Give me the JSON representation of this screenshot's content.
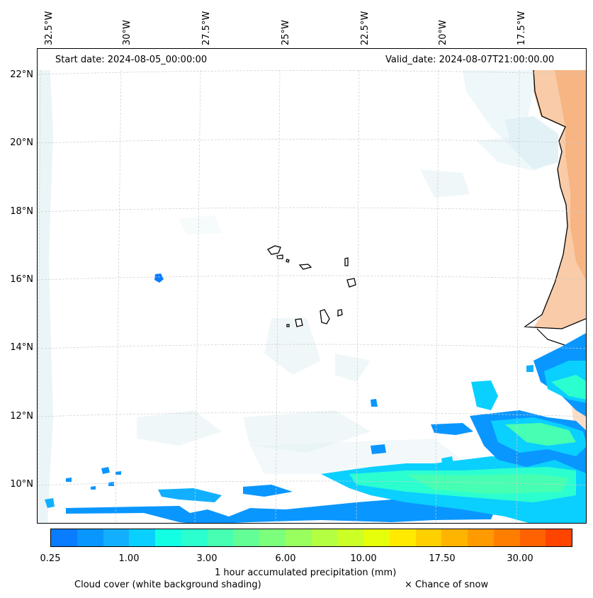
{
  "header": {
    "start_date": "Start date: 2024-08-05_00:00:00",
    "valid_date": "Valid_date: 2024-08-07T21:00:00.00"
  },
  "lon_labels": [
    "32.5°W",
    "30°W",
    "27.5°W",
    "25°W",
    "22.5°W",
    "20°W",
    "17.5°W"
  ],
  "lat_labels": [
    "22°N",
    "20°N",
    "18°N",
    "16°N",
    "14°N",
    "12°N",
    "10°N"
  ],
  "colorbar": {
    "title": "1 hour accumulated precipitation (mm)",
    "ticks": [
      "0.25",
      "1.00",
      "3.00",
      "6.00",
      "10.00",
      "17.50",
      "30.00"
    ],
    "colors": [
      "#0a7cff",
      "#0a96ff",
      "#13afff",
      "#0ad0ff",
      "#12ffe4",
      "#2bffd0",
      "#47ffb2",
      "#63ff96",
      "#7cff7c",
      "#99ff5e",
      "#b4ff42",
      "#ccff26",
      "#e6ff0a",
      "#ffea00",
      "#ffd000",
      "#ffb400",
      "#ff9a00",
      "#ff7e00",
      "#ff6200",
      "#ff4400"
    ]
  },
  "legend": {
    "cloud_cover": "Cloud cover (white background shading)",
    "snow": "× Chance of snow"
  },
  "map": {
    "land_fill": "#f4a060",
    "cloud_fill": "#d8ecf2",
    "grid_color": "#cccccc"
  }
}
